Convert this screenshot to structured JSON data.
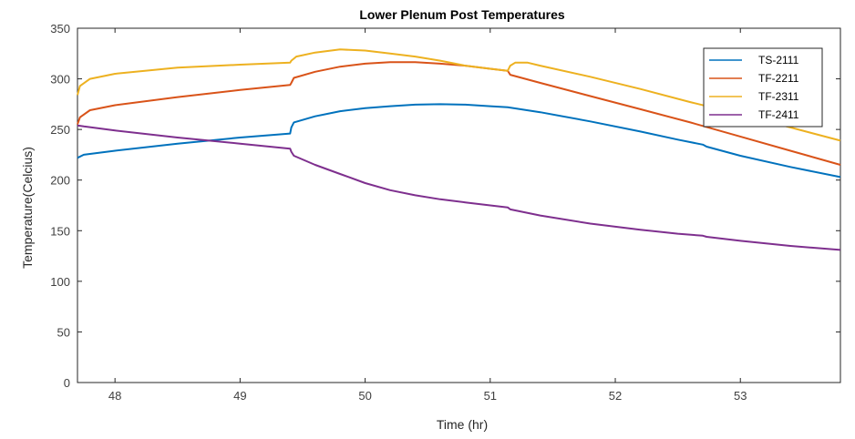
{
  "chart_data": {
    "type": "line",
    "title": "Lower Plenum Post Temperatures",
    "xlabel": "Time (hr)",
    "ylabel": "Temperature(Celcius)",
    "xlim": [
      47.7,
      53.8
    ],
    "ylim": [
      0,
      350
    ],
    "xticks": [
      48,
      49,
      50,
      51,
      52,
      53
    ],
    "yticks": [
      0,
      50,
      100,
      150,
      200,
      250,
      300,
      350
    ],
    "grid": false,
    "legend_position": "top-right",
    "series": [
      {
        "name": "TS-2111",
        "color": "#0072BD",
        "points": [
          [
            47.7,
            222
          ],
          [
            47.75,
            225
          ],
          [
            48.0,
            229
          ],
          [
            48.5,
            236
          ],
          [
            49.0,
            242
          ],
          [
            49.4,
            246
          ],
          [
            49.41,
            252
          ],
          [
            49.43,
            257
          ],
          [
            49.6,
            263
          ],
          [
            49.8,
            268
          ],
          [
            50.0,
            271
          ],
          [
            50.2,
            273
          ],
          [
            50.4,
            274.5
          ],
          [
            50.6,
            275
          ],
          [
            50.8,
            274.5
          ],
          [
            51.0,
            273
          ],
          [
            51.14,
            272
          ],
          [
            51.4,
            267
          ],
          [
            51.8,
            258
          ],
          [
            52.2,
            248
          ],
          [
            52.5,
            240
          ],
          [
            52.7,
            235
          ],
          [
            52.73,
            233
          ],
          [
            53.0,
            224
          ],
          [
            53.4,
            213
          ],
          [
            53.8,
            203
          ]
        ]
      },
      {
        "name": "TF-2211",
        "color": "#D95319",
        "points": [
          [
            47.7,
            255
          ],
          [
            47.72,
            262
          ],
          [
            47.8,
            269
          ],
          [
            48.0,
            274
          ],
          [
            48.5,
            282
          ],
          [
            49.0,
            289
          ],
          [
            49.4,
            294
          ],
          [
            49.41,
            296
          ],
          [
            49.43,
            301
          ],
          [
            49.6,
            307
          ],
          [
            49.8,
            312
          ],
          [
            50.0,
            315
          ],
          [
            50.2,
            316.5
          ],
          [
            50.4,
            316.5
          ],
          [
            50.6,
            315
          ],
          [
            50.8,
            313
          ],
          [
            51.0,
            310
          ],
          [
            51.14,
            308
          ],
          [
            51.16,
            304
          ],
          [
            51.4,
            296
          ],
          [
            51.8,
            283
          ],
          [
            52.2,
            270
          ],
          [
            52.6,
            257
          ],
          [
            53.0,
            243
          ],
          [
            53.4,
            229
          ],
          [
            53.8,
            215
          ]
        ]
      },
      {
        "name": "TF-2311",
        "color": "#EDB120",
        "points": [
          [
            47.7,
            284
          ],
          [
            47.72,
            293
          ],
          [
            47.8,
            300
          ],
          [
            48.0,
            305
          ],
          [
            48.5,
            311
          ],
          [
            49.0,
            314
          ],
          [
            49.4,
            316
          ],
          [
            49.41,
            318
          ],
          [
            49.45,
            322
          ],
          [
            49.6,
            326
          ],
          [
            49.8,
            329
          ],
          [
            50.0,
            328
          ],
          [
            50.2,
            325
          ],
          [
            50.4,
            322
          ],
          [
            50.6,
            318
          ],
          [
            50.8,
            313
          ],
          [
            51.0,
            310
          ],
          [
            51.14,
            308
          ],
          [
            51.16,
            313
          ],
          [
            51.2,
            316
          ],
          [
            51.3,
            316
          ],
          [
            51.4,
            313
          ],
          [
            51.8,
            302
          ],
          [
            52.2,
            290
          ],
          [
            52.6,
            277
          ],
          [
            53.0,
            265
          ],
          [
            53.4,
            252
          ],
          [
            53.8,
            239
          ]
        ]
      },
      {
        "name": "TF-2411",
        "color": "#7E2F8E",
        "points": [
          [
            47.7,
            254
          ],
          [
            47.75,
            253
          ],
          [
            48.0,
            249
          ],
          [
            48.5,
            242
          ],
          [
            49.0,
            236
          ],
          [
            49.4,
            231
          ],
          [
            49.41,
            228
          ],
          [
            49.43,
            224
          ],
          [
            49.6,
            215
          ],
          [
            49.8,
            206
          ],
          [
            50.0,
            197
          ],
          [
            50.2,
            190
          ],
          [
            50.4,
            185
          ],
          [
            50.6,
            181
          ],
          [
            50.8,
            178
          ],
          [
            51.0,
            175
          ],
          [
            51.14,
            173
          ],
          [
            51.16,
            171
          ],
          [
            51.4,
            165
          ],
          [
            51.8,
            157
          ],
          [
            52.2,
            151
          ],
          [
            52.5,
            147
          ],
          [
            52.7,
            145
          ],
          [
            52.73,
            144
          ],
          [
            53.0,
            140
          ],
          [
            53.4,
            135
          ],
          [
            53.8,
            131
          ]
        ]
      }
    ]
  }
}
